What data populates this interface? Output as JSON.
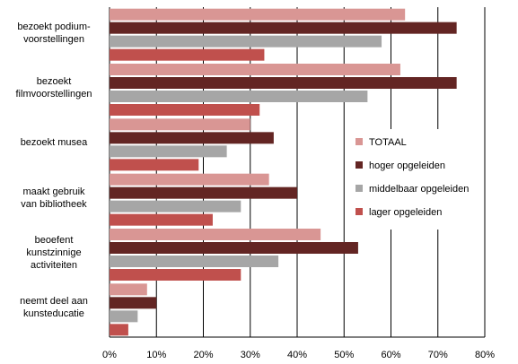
{
  "chart_data": {
    "type": "bar",
    "orientation": "horizontal",
    "categories": [
      "bezoekt podium-\nvoorstellingen",
      "bezoekt\nfilmvoorstellingen",
      "bezoekt musea",
      "maakt gebruik\nvan bibliotheek",
      "beoefent\nkunstzinnige\nactiviteiten",
      "neemt deel aan\nkunsteducatie"
    ],
    "series": [
      {
        "name": "TOTAAL",
        "color": "#d99694",
        "values": [
          63,
          62,
          30,
          34,
          45,
          8
        ]
      },
      {
        "name": "hoger opgeleiden",
        "color": "#632523",
        "values": [
          74,
          74,
          35,
          40,
          53,
          10
        ]
      },
      {
        "name": "middelbaar opgeleiden",
        "color": "#a6a6a6",
        "values": [
          58,
          55,
          25,
          28,
          36,
          6
        ]
      },
      {
        "name": "lager opgeleiden",
        "color": "#c0504d",
        "values": [
          33,
          32,
          19,
          22,
          28,
          4
        ]
      }
    ],
    "xlim": [
      0,
      80
    ],
    "xticks": [
      "0%",
      "10%",
      "20%",
      "30%",
      "40%",
      "50%",
      "60%",
      "70%",
      "80%"
    ],
    "grid": "vertical",
    "legend_position": "right"
  }
}
